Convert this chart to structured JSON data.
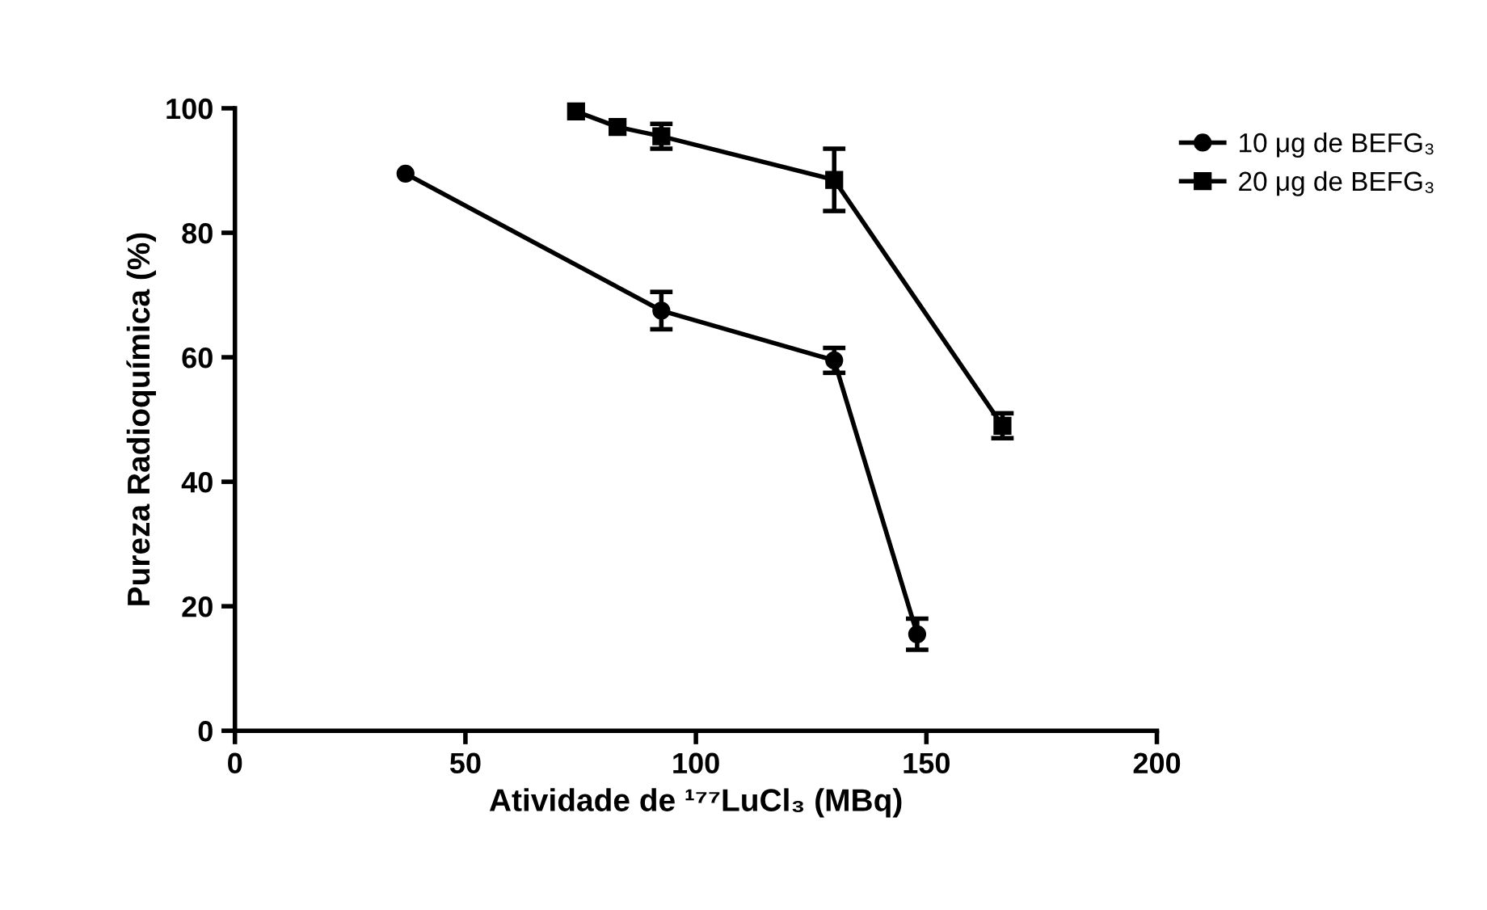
{
  "chart_data": {
    "type": "line",
    "xlabel": "Atividade de ¹⁷⁷LuCl₃ (MBq)",
    "ylabel": "Pureza Radioquímica (%)",
    "xlim": [
      0,
      200
    ],
    "xticks": [
      0,
      50,
      100,
      150,
      200
    ],
    "ylim": [
      0,
      100
    ],
    "yticks": [
      0,
      20,
      40,
      60,
      80,
      100
    ],
    "grid": false,
    "legend": "top right",
    "line_style": "solid",
    "series": [
      {
        "name": "10 μg de BEFG₃",
        "color": "#000000",
        "marker": "circle",
        "x": [
          37,
          92.5,
          130,
          148
        ],
        "values": [
          89.5,
          67.5,
          59.5,
          15.5
        ],
        "errors": [
          null,
          3,
          2,
          2.5
        ]
      },
      {
        "name": "20 μg de BEFG₃",
        "color": "#000000",
        "marker": "square",
        "x": [
          74,
          83,
          92.5,
          130,
          166.5
        ],
        "values": [
          99.5,
          97,
          95.5,
          88.5,
          49
        ],
        "errors": [
          null,
          null,
          2,
          5,
          2
        ]
      }
    ]
  }
}
